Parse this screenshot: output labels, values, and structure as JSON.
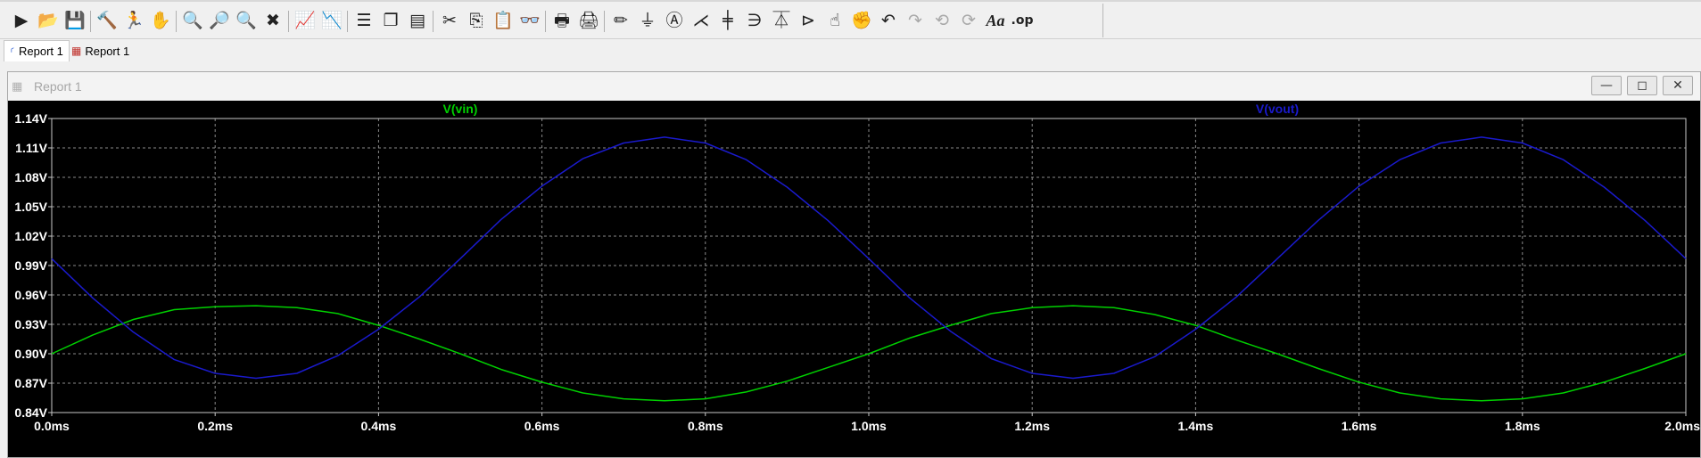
{
  "toolbar": {
    "buttons": [
      {
        "name": "run-button",
        "icon": "run-icon",
        "glyph": "▶",
        "enabled": true
      },
      {
        "name": "open-button",
        "icon": "open-folder-icon",
        "glyph": "📂",
        "enabled": true
      },
      {
        "name": "save-button",
        "icon": "save-icon",
        "glyph": "💾",
        "enabled": true
      },
      {
        "name": "control-panel-button",
        "icon": "hammer-icon",
        "glyph": "🔨",
        "enabled": true
      },
      {
        "name": "halt-button",
        "icon": "running-man-icon",
        "glyph": "🏃",
        "enabled": true
      },
      {
        "name": "pan-button",
        "icon": "hand-icon",
        "glyph": "✋",
        "enabled": false
      },
      {
        "name": "zoom-area-button",
        "icon": "zoom-in-icon",
        "glyph": "🔍",
        "enabled": true
      },
      {
        "name": "zoom-back-button",
        "icon": "zoom-back-icon",
        "glyph": "🔎",
        "enabled": false
      },
      {
        "name": "zoom-out-button",
        "icon": "zoom-out-icon",
        "glyph": "🔍",
        "enabled": true
      },
      {
        "name": "zoom-fit-button",
        "icon": "zoom-fit-icon",
        "glyph": "✖",
        "enabled": true
      },
      {
        "name": "autorange-button",
        "icon": "waveform-icon",
        "glyph": "📈",
        "enabled": true
      },
      {
        "name": "waveform-cursor-button",
        "icon": "cursor-icon",
        "glyph": "📉",
        "enabled": false
      },
      {
        "name": "tile-horizontal-button",
        "icon": "tile-horizontal-icon",
        "glyph": "☰",
        "enabled": true
      },
      {
        "name": "cascade-button",
        "icon": "cascade-icon",
        "glyph": "❐",
        "enabled": true
      },
      {
        "name": "tile-vertical-button",
        "icon": "tile-vertical-icon",
        "glyph": "▤",
        "enabled": true
      },
      {
        "name": "cut-button",
        "icon": "scissors-icon",
        "glyph": "✂",
        "enabled": true
      },
      {
        "name": "copy-button",
        "icon": "copy-icon",
        "glyph": "⎘",
        "enabled": true
      },
      {
        "name": "paste-button",
        "icon": "paste-icon",
        "glyph": "📋",
        "enabled": false
      },
      {
        "name": "find-button",
        "icon": "binoculars-icon",
        "glyph": "👓",
        "enabled": true
      },
      {
        "name": "print-button",
        "icon": "printer-icon",
        "glyph": "🖶",
        "enabled": true
      },
      {
        "name": "print-preview-button",
        "icon": "print-preview-icon",
        "glyph": "🖨",
        "enabled": true
      },
      {
        "name": "draw-wire-button",
        "icon": "pencil-icon",
        "glyph": "✏",
        "enabled": true
      },
      {
        "name": "ground-button",
        "icon": "ground-icon",
        "glyph": "⏚",
        "enabled": true
      },
      {
        "name": "label-net-button",
        "icon": "label-icon",
        "glyph": "Ⓐ",
        "enabled": true
      },
      {
        "name": "resistor-button",
        "icon": "resistor-icon",
        "glyph": "⋌",
        "enabled": true
      },
      {
        "name": "capacitor-button",
        "icon": "capacitor-icon",
        "glyph": "╪",
        "enabled": true
      },
      {
        "name": "inductor-button",
        "icon": "inductor-icon",
        "glyph": "∋",
        "enabled": true
      },
      {
        "name": "diode-button",
        "icon": "diode-icon",
        "glyph": "⏄",
        "enabled": true
      },
      {
        "name": "component-button",
        "icon": "component-icon",
        "glyph": "⊳",
        "enabled": true
      },
      {
        "name": "move-button",
        "icon": "move-hand-icon",
        "glyph": "☝",
        "enabled": true
      },
      {
        "name": "drag-button",
        "icon": "drag-hand-icon",
        "glyph": "✊",
        "enabled": true
      },
      {
        "name": "undo-button",
        "icon": "undo-icon",
        "glyph": "↶",
        "enabled": true
      },
      {
        "name": "redo-button",
        "icon": "redo-icon",
        "glyph": "↷",
        "enabled": false
      },
      {
        "name": "rotate-button",
        "icon": "rotate-icon",
        "glyph": "⟲",
        "enabled": false
      },
      {
        "name": "mirror-button",
        "icon": "mirror-icon",
        "glyph": "⟳",
        "enabled": false
      },
      {
        "name": "text-button",
        "icon": "text-icon",
        "glyph": "Aa",
        "enabled": true
      },
      {
        "name": "spice-directive-button",
        "icon": "spice-directive-icon",
        "glyph": ".op",
        "enabled": true
      }
    ]
  },
  "tabs": [
    {
      "label": "Report 1",
      "icon": "schematic-icon",
      "active": true
    },
    {
      "label": "Report 1",
      "icon": "waveform-icon",
      "active": false
    }
  ],
  "window": {
    "title": "Report 1",
    "minimize_glyph": "—",
    "maximize_glyph": "◻",
    "close_glyph": "✕"
  },
  "chart_data": {
    "type": "line",
    "background": "#000000",
    "grid": true,
    "xlim": [
      0.0,
      2.0
    ],
    "ylim": [
      0.84,
      1.14
    ],
    "x_unit": "ms",
    "y_unit": "V",
    "x_ticks": [
      "0.0ms",
      "0.2ms",
      "0.4ms",
      "0.6ms",
      "0.8ms",
      "1.0ms",
      "1.2ms",
      "1.4ms",
      "1.6ms",
      "1.8ms",
      "2.0ms"
    ],
    "y_ticks": [
      "1.14V",
      "1.11V",
      "1.08V",
      "1.05V",
      "1.02V",
      "0.99V",
      "0.96V",
      "0.93V",
      "0.90V",
      "0.87V",
      "0.84V"
    ],
    "x_tick_values": [
      0.0,
      0.2,
      0.4,
      0.6,
      0.8,
      1.0,
      1.2,
      1.4,
      1.6,
      1.8,
      2.0
    ],
    "y_tick_values": [
      1.14,
      1.11,
      1.08,
      1.05,
      1.02,
      0.99,
      0.96,
      0.93,
      0.9,
      0.87,
      0.84
    ],
    "series": [
      {
        "name": "V(vin)",
        "color": "#00d000",
        "x": [
          0.0,
          0.05,
          0.1,
          0.15,
          0.2,
          0.25,
          0.3,
          0.35,
          0.4,
          0.45,
          0.5,
          0.55,
          0.6,
          0.65,
          0.7,
          0.75,
          0.8,
          0.85,
          0.9,
          0.95,
          1.0,
          1.05,
          1.1,
          1.15,
          1.2,
          1.25,
          1.3,
          1.35,
          1.4,
          1.45,
          1.5,
          1.55,
          1.6,
          1.65,
          1.7,
          1.75,
          1.8,
          1.85,
          1.9,
          1.95,
          2.0
        ],
        "values": [
          0.9,
          0.919,
          0.935,
          0.945,
          0.948,
          0.949,
          0.947,
          0.941,
          0.929,
          0.915,
          0.9,
          0.884,
          0.871,
          0.86,
          0.854,
          0.852,
          0.854,
          0.861,
          0.872,
          0.886,
          0.9,
          0.916,
          0.929,
          0.941,
          0.947,
          0.949,
          0.947,
          0.94,
          0.929,
          0.914,
          0.9,
          0.885,
          0.871,
          0.86,
          0.854,
          0.852,
          0.854,
          0.86,
          0.871,
          0.885,
          0.9
        ]
      },
      {
        "name": "V(vout)",
        "color": "#1a1acc",
        "x": [
          0.0,
          0.05,
          0.1,
          0.15,
          0.2,
          0.25,
          0.3,
          0.35,
          0.4,
          0.45,
          0.5,
          0.55,
          0.6,
          0.65,
          0.7,
          0.75,
          0.8,
          0.85,
          0.9,
          0.95,
          1.0,
          1.05,
          1.1,
          1.15,
          1.2,
          1.25,
          1.3,
          1.35,
          1.4,
          1.45,
          1.5,
          1.55,
          1.6,
          1.65,
          1.7,
          1.75,
          1.8,
          1.85,
          1.9,
          1.95,
          2.0
        ],
        "values": [
          0.997,
          0.957,
          0.922,
          0.894,
          0.88,
          0.875,
          0.88,
          0.898,
          0.925,
          0.958,
          0.997,
          1.037,
          1.071,
          1.099,
          1.115,
          1.121,
          1.115,
          1.098,
          1.07,
          1.036,
          0.997,
          0.957,
          0.923,
          0.895,
          0.88,
          0.875,
          0.88,
          0.897,
          0.925,
          0.958,
          0.997,
          1.036,
          1.071,
          1.098,
          1.115,
          1.121,
          1.115,
          1.098,
          1.07,
          1.036,
          0.997
        ]
      }
    ]
  }
}
